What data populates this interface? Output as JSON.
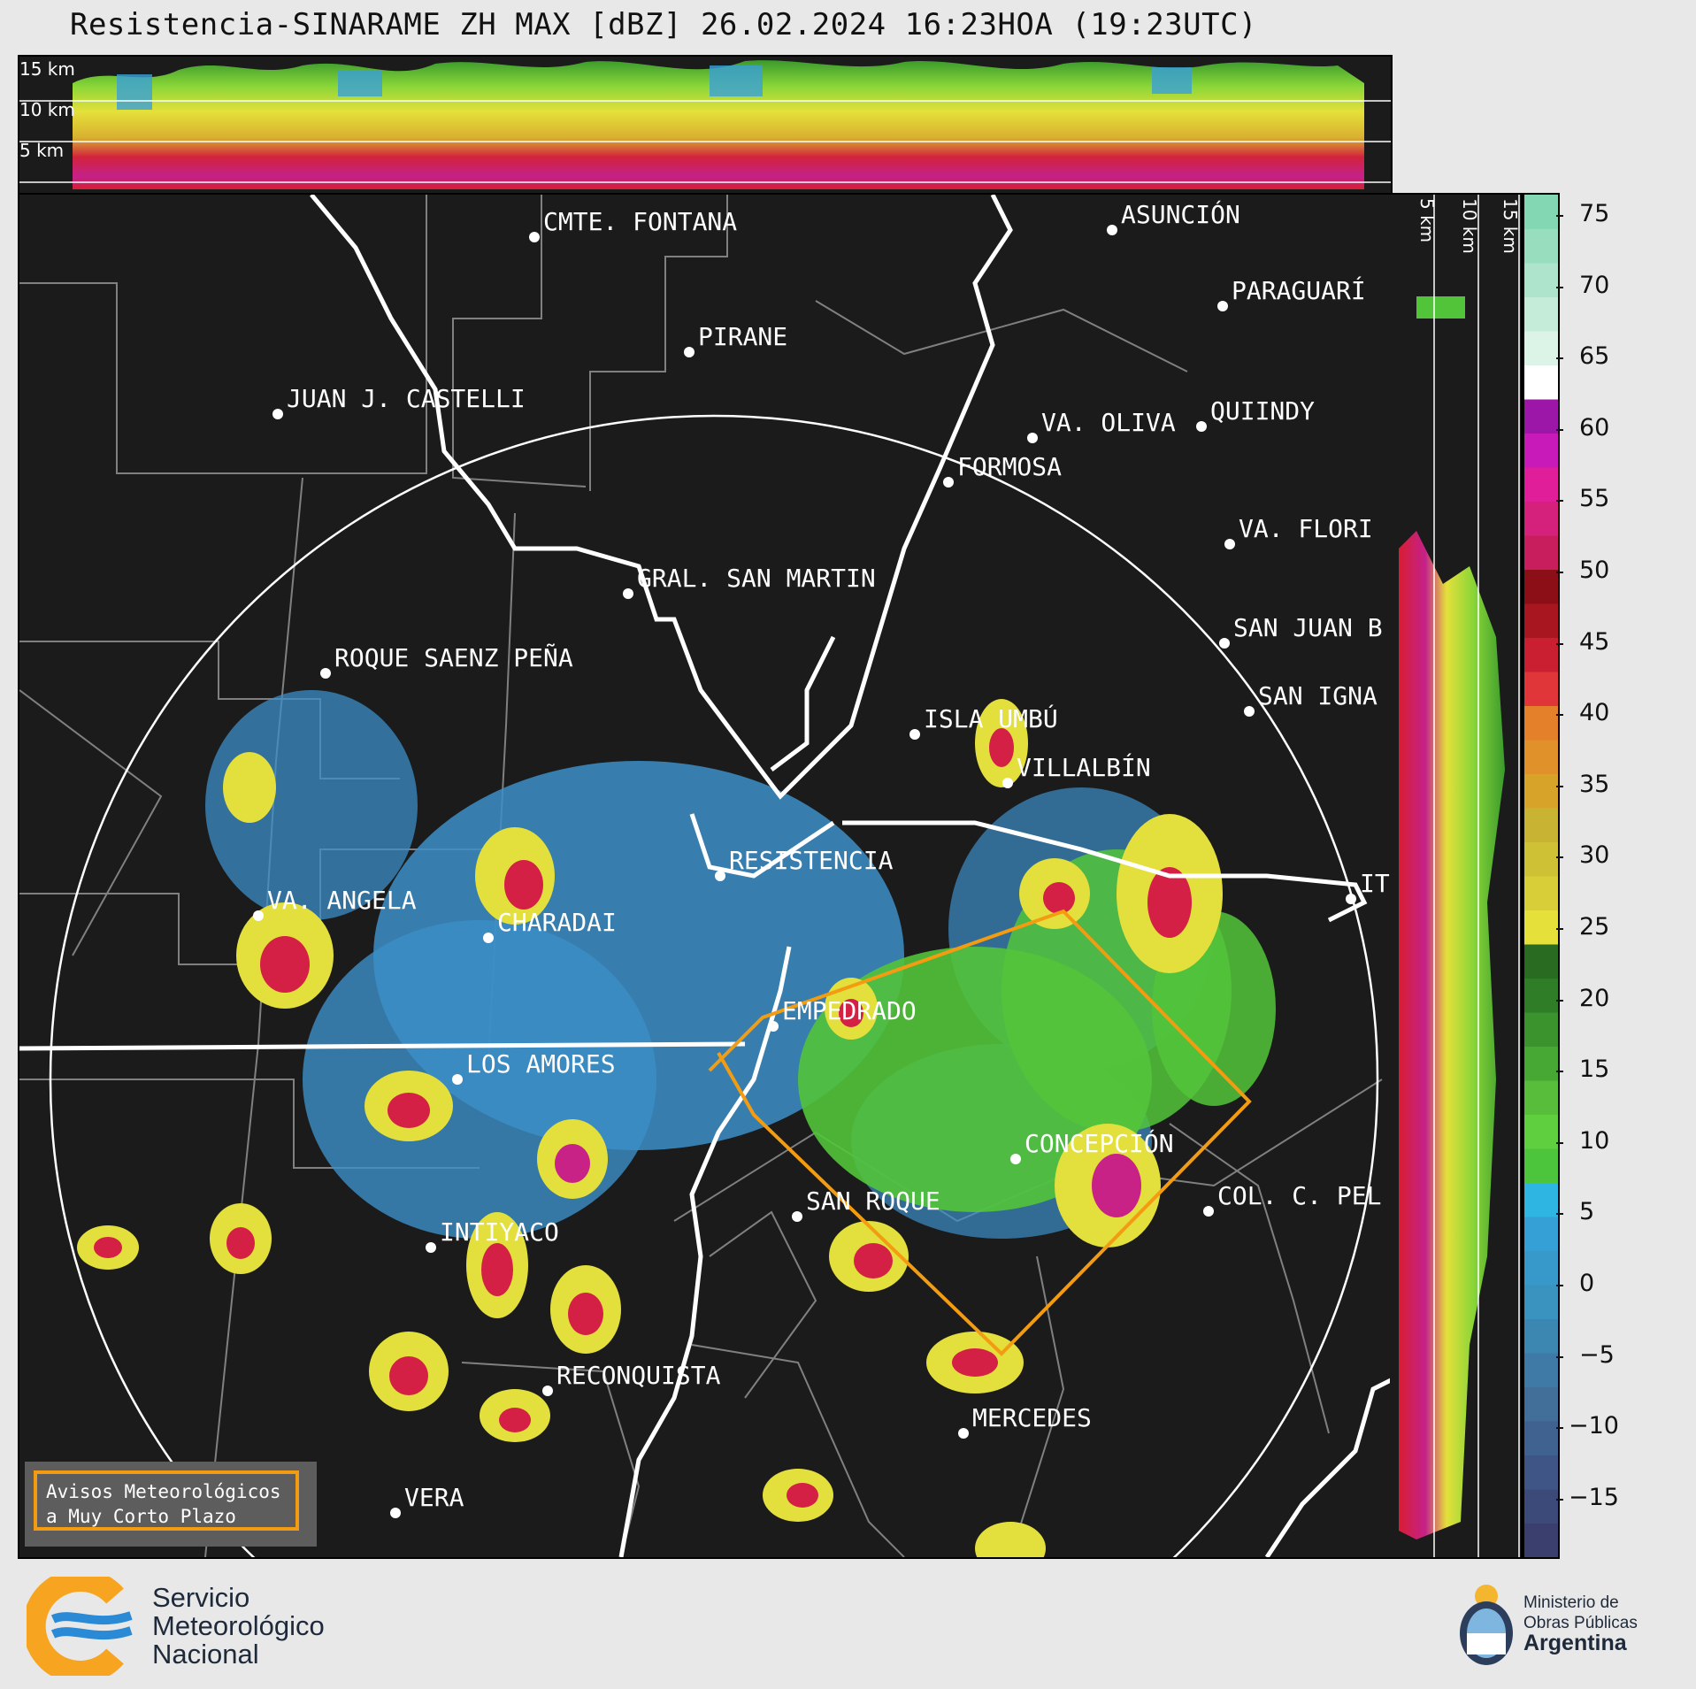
{
  "title": "Resistencia-SINARAME ZH MAX [dBZ] 26.02.2024 16:23HOA (19:23UTC)",
  "top_strip": {
    "height_labels": [
      "15 km",
      "10 km",
      "5 km"
    ]
  },
  "side_strip": {
    "height_labels": [
      "5 km",
      "10 km",
      "15 km"
    ]
  },
  "colorbar": {
    "unit": "dBZ",
    "ticks": [
      "75",
      "70",
      "65",
      "60",
      "55",
      "50",
      "45",
      "40",
      "35",
      "30",
      "25",
      "20",
      "15",
      "10",
      "5",
      "0",
      "−5",
      "−10",
      "−15"
    ]
  },
  "cities": [
    {
      "name": "CMTE. FONTANA"
    },
    {
      "name": "ASUNCIÓN"
    },
    {
      "name": "PARAGUARÍ"
    },
    {
      "name": "PIRANE"
    },
    {
      "name": "JUAN J. CASTELLI"
    },
    {
      "name": "VA. OLIVA"
    },
    {
      "name": "QUIINDY"
    },
    {
      "name": "FORMOSA"
    },
    {
      "name": "VA. FLORI"
    },
    {
      "name": "GRAL. SAN MARTIN"
    },
    {
      "name": "SAN JUAN B"
    },
    {
      "name": "ROQUE SAENZ PEÑA"
    },
    {
      "name": "SAN IGNA"
    },
    {
      "name": "ISLA UMBÚ"
    },
    {
      "name": "VILLALBÍN"
    },
    {
      "name": "RESISTENCIA"
    },
    {
      "name": "IT"
    },
    {
      "name": "VA. ANGELA"
    },
    {
      "name": "CHARADAI"
    },
    {
      "name": "EMPEDRADO"
    },
    {
      "name": "LOS AMORES"
    },
    {
      "name": "CONCEPCIÓN"
    },
    {
      "name": "SAN ROQUE"
    },
    {
      "name": "COL. C. PEL"
    },
    {
      "name": "INTIYACO"
    },
    {
      "name": "RECONQUISTA"
    },
    {
      "name": "MERCEDES"
    },
    {
      "name": "VERA"
    }
  ],
  "notice": {
    "line1": "Avisos Meteorológicos",
    "line2": "a Muy Corto Plazo"
  },
  "logos": {
    "smn": {
      "line1": "Servicio",
      "line2": "Meteorológico",
      "line3": "Nacional"
    },
    "ministry": {
      "line1": "Ministerio de",
      "line2": "Obras Públicas",
      "line3": "Argentina"
    }
  },
  "colors": {
    "warning_polygon": "#f39c12",
    "rivers": "#ffffff",
    "borders": "#808080",
    "background": "#1b1b1b"
  }
}
